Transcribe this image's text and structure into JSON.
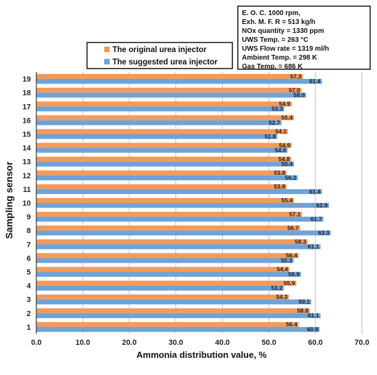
{
  "chart_data": {
    "type": "bar",
    "orientation": "horizontal",
    "categories": [
      "1",
      "2",
      "3",
      "4",
      "5",
      "6",
      "7",
      "8",
      "9",
      "10",
      "11",
      "12",
      "13",
      "14",
      "15",
      "16",
      "17",
      "18",
      "19"
    ],
    "series": [
      {
        "name": "The original urea injector",
        "color": "#F39A5B",
        "values": [
          56.4,
          58.8,
          54.3,
          55.9,
          54.4,
          56.4,
          58.3,
          56.7,
          57.1,
          55.4,
          53.8,
          53.8,
          54.8,
          54.9,
          54.1,
          55.4,
          54.9,
          57.0,
          57.3
        ]
      },
      {
        "name": "The suggested urea injector",
        "color": "#6FA3D8",
        "values": [
          60.9,
          61.1,
          59.1,
          53.2,
          56.9,
          55.3,
          61.1,
          63.3,
          61.7,
          62.9,
          61.4,
          56.2,
          55.4,
          54.0,
          51.8,
          52.7,
          53.3,
          58.0,
          61.4
        ]
      }
    ],
    "xlabel": "Ammonia distribution value, %",
    "ylabel": "Sampling sensor",
    "xlim": [
      0,
      70
    ],
    "x_ticks": [
      "0.0",
      "10.0",
      "20.0",
      "30.0",
      "40.0",
      "50.0",
      "60.0",
      "70.0"
    ],
    "grid": "vertical",
    "legend_position": "top-center",
    "info_box": [
      "E. O. C. 1000 rpm,",
      "Exh. M. F. R = 513 kg/h",
      "NOx quantity = 1330 ppm",
      "UWS Temp. = 263 °C",
      "UWS Flow rate = 1319 ml/h",
      "Ambient Temp. = 298 K",
      "Gas Temp. = 686 K"
    ]
  }
}
